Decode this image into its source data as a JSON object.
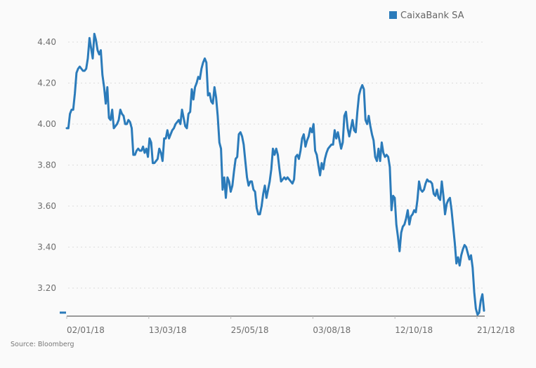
{
  "chart_data": {
    "type": "line",
    "title": "",
    "xlabel": "",
    "ylabel": "",
    "ylim": [
      3.06,
      4.44
    ],
    "yticks": [
      "4.40",
      "4.20",
      "4.00",
      "3.80",
      "3.60",
      "3.40",
      "3.20"
    ],
    "ytick_values": [
      4.4,
      4.2,
      4.0,
      3.8,
      3.6,
      3.4,
      3.2
    ],
    "xticks": [
      "02/01/18",
      "13/03/18",
      "25/05/18",
      "03/08/18",
      "12/10/18",
      "21/12/18"
    ],
    "grid": true,
    "legend_position": "top-right",
    "series": [
      {
        "name": "CaixaBank SA",
        "color": "#2b7bba",
        "values": [
          3.98,
          3.98,
          4.05,
          4.07,
          4.07,
          4.15,
          4.25,
          4.27,
          4.28,
          4.27,
          4.26,
          4.26,
          4.27,
          4.32,
          4.42,
          4.37,
          4.32,
          4.44,
          4.41,
          4.36,
          4.34,
          4.36,
          4.24,
          4.18,
          4.1,
          4.18,
          4.03,
          4.02,
          4.07,
          3.98,
          3.99,
          4.0,
          4.02,
          4.07,
          4.05,
          4.04,
          4.0,
          4.0,
          4.02,
          4.01,
          3.98,
          3.85,
          3.85,
          3.87,
          3.88,
          3.87,
          3.87,
          3.89,
          3.86,
          3.88,
          3.84,
          3.93,
          3.91,
          3.81,
          3.81,
          3.82,
          3.83,
          3.88,
          3.86,
          3.82,
          3.93,
          3.93,
          3.97,
          3.93,
          3.95,
          3.97,
          3.98,
          4.0,
          4.01,
          4.02,
          4.0,
          4.07,
          4.03,
          3.99,
          3.98,
          4.05,
          4.06,
          4.17,
          4.12,
          4.18,
          4.2,
          4.23,
          4.22,
          4.27,
          4.3,
          4.32,
          4.3,
          4.14,
          4.15,
          4.11,
          4.1,
          4.18,
          4.13,
          4.04,
          3.91,
          3.88,
          3.68,
          3.74,
          3.64,
          3.74,
          3.72,
          3.67,
          3.7,
          3.77,
          3.83,
          3.84,
          3.95,
          3.96,
          3.94,
          3.9,
          3.82,
          3.74,
          3.7,
          3.72,
          3.72,
          3.68,
          3.67,
          3.59,
          3.56,
          3.56,
          3.6,
          3.66,
          3.7,
          3.64,
          3.68,
          3.72,
          3.78,
          3.88,
          3.85,
          3.88,
          3.85,
          3.78,
          3.72,
          3.73,
          3.74,
          3.73,
          3.74,
          3.73,
          3.72,
          3.71,
          3.73,
          3.84,
          3.85,
          3.83,
          3.87,
          3.93,
          3.95,
          3.89,
          3.92,
          3.94,
          3.98,
          3.96,
          4.0,
          3.87,
          3.85,
          3.8,
          3.75,
          3.81,
          3.78,
          3.83,
          3.86,
          3.88,
          3.89,
          3.9,
          3.9,
          3.97,
          3.93,
          3.96,
          3.92,
          3.88,
          3.91,
          4.04,
          4.06,
          3.98,
          3.94,
          3.98,
          4.02,
          3.97,
          3.96,
          4.06,
          4.14,
          4.17,
          4.19,
          4.17,
          4.02,
          4.0,
          4.04,
          3.99,
          3.95,
          3.92,
          3.84,
          3.82,
          3.88,
          3.82,
          3.91,
          3.86,
          3.84,
          3.85,
          3.84,
          3.79,
          3.58,
          3.65,
          3.64,
          3.51,
          3.45,
          3.38,
          3.47,
          3.5,
          3.51,
          3.54,
          3.58,
          3.51,
          3.55,
          3.56,
          3.58,
          3.57,
          3.63,
          3.72,
          3.68,
          3.67,
          3.68,
          3.71,
          3.73,
          3.72,
          3.72,
          3.71,
          3.66,
          3.65,
          3.68,
          3.64,
          3.63,
          3.72,
          3.65,
          3.56,
          3.61,
          3.63,
          3.64,
          3.58,
          3.5,
          3.42,
          3.32,
          3.35,
          3.31,
          3.36,
          3.39,
          3.41,
          3.4,
          3.37,
          3.34,
          3.36,
          3.3,
          3.18,
          3.1,
          3.07,
          3.08,
          3.14,
          3.17,
          3.09
        ]
      }
    ]
  },
  "legend": {
    "label": "CaixaBank SA",
    "color": "#2b7bba"
  },
  "source": "Source: Bloomberg"
}
